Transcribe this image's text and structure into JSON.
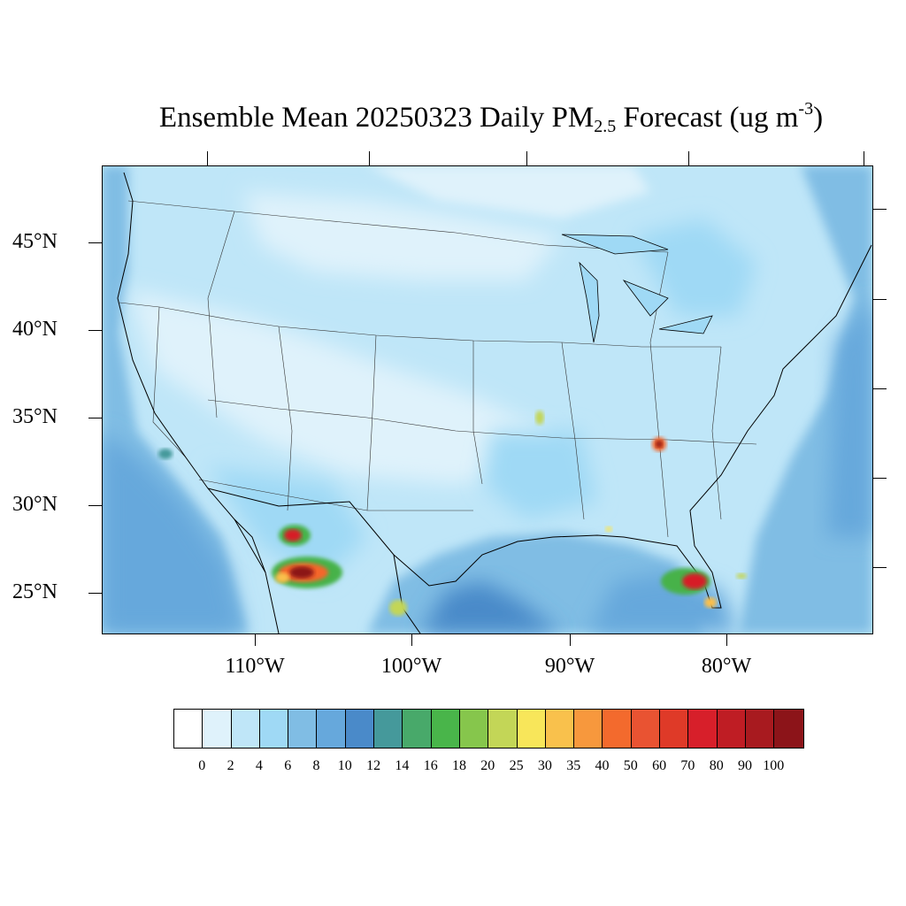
{
  "title": {
    "main": "Ensemble Mean 20250323 Daily PM",
    "subscript": "2.5",
    "after": " Forecast (ug m",
    "superscript": "-3",
    "close": ")"
  },
  "map": {
    "region": "Contiguous United States",
    "lat_labels": [
      "45°N",
      "40°N",
      "35°N",
      "30°N",
      "25°N"
    ],
    "lon_labels": [
      "110°W",
      "100°W",
      "90°W",
      "80°W"
    ],
    "background_color": "#cfe9f7",
    "hotspot_colors": [
      "#fbc04b",
      "#f4662c",
      "#d71f26",
      "#8c1419",
      "#47b248",
      "#c3d657"
    ]
  },
  "colorbar": {
    "labels": [
      "0",
      "2",
      "4",
      "6",
      "8",
      "10",
      "12",
      "14",
      "16",
      "18",
      "20",
      "25",
      "30",
      "35",
      "40",
      "50",
      "60",
      "70",
      "80",
      "90",
      "100"
    ],
    "colors": [
      "#ffffff",
      "#dff2fb",
      "#bfe6f8",
      "#9fd9f5",
      "#80bde4",
      "#66a8dc",
      "#4a8ac9",
      "#45999b",
      "#48a96a",
      "#49b54a",
      "#86c64c",
      "#c3d657",
      "#f8e65a",
      "#f9c14c",
      "#f7983d",
      "#f36a2d",
      "#e95332",
      "#df3a28",
      "#d71f2a",
      "#bf1d24",
      "#a81a1f",
      "#8c1419"
    ]
  }
}
